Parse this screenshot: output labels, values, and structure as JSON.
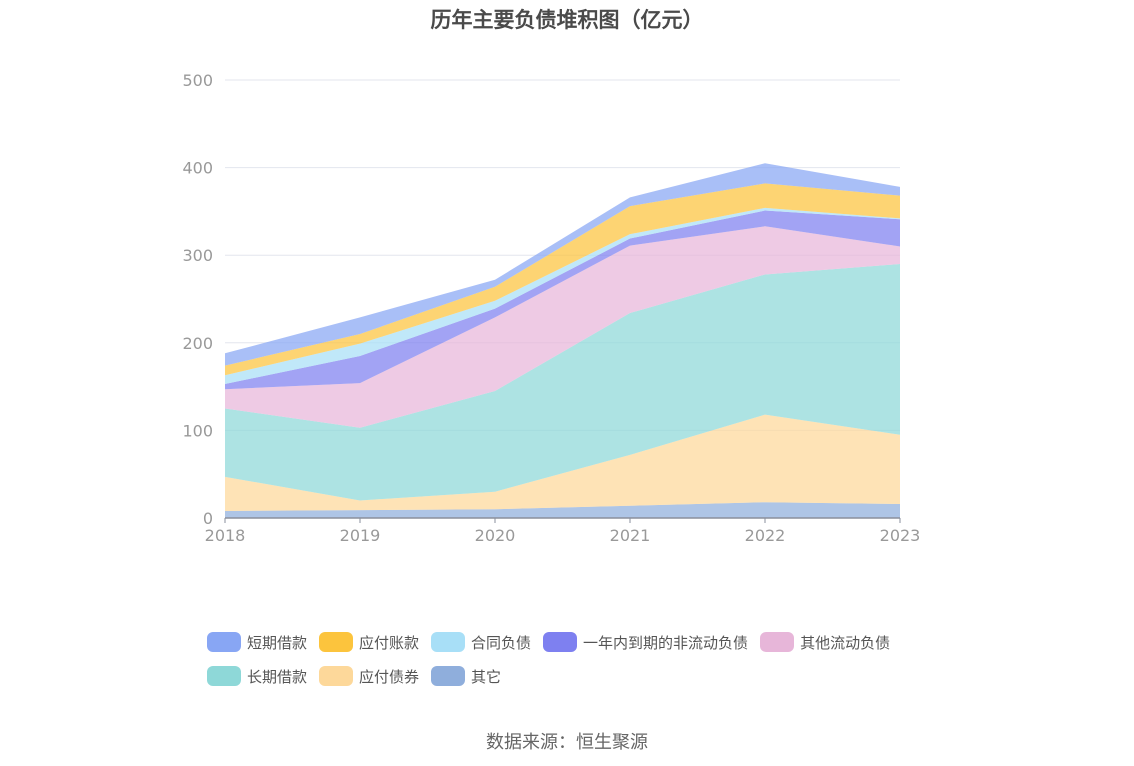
{
  "chart_data": {
    "type": "area",
    "stacked": true,
    "title": "历年主要负债堆积图（亿元）",
    "categories": [
      "2018",
      "2019",
      "2020",
      "2021",
      "2022",
      "2023"
    ],
    "ylim": [
      0,
      500
    ],
    "yticks": [
      0,
      100,
      200,
      300,
      400,
      500
    ],
    "grid": true,
    "legend_position": "bottom",
    "series": [
      {
        "name": "其它",
        "color": "#8faedc",
        "values": [
          8,
          9,
          10,
          14,
          18,
          16
        ]
      },
      {
        "name": "应付债券",
        "color": "#fdd89a",
        "values": [
          39,
          11,
          20,
          58,
          100,
          79
        ]
      },
      {
        "name": "长期借款",
        "color": "#8ed8d8",
        "values": [
          78,
          83,
          115,
          162,
          160,
          195
        ]
      },
      {
        "name": "其他流动负债",
        "color": "#e7b6d9",
        "values": [
          22,
          51,
          84,
          77,
          55,
          20
        ]
      },
      {
        "name": "一年内到期的非流动负债",
        "color": "#7e80f0",
        "values": [
          6,
          31,
          10,
          8,
          18,
          31
        ]
      },
      {
        "name": "合同负债",
        "color": "#a8dff7",
        "values": [
          10,
          14,
          9,
          5,
          3,
          1
        ]
      },
      {
        "name": "应付账款",
        "color": "#fcc43d",
        "values": [
          11,
          11,
          16,
          32,
          28,
          26
        ]
      },
      {
        "name": "短期借款",
        "color": "#88a6f4",
        "values": [
          14,
          19,
          8,
          10,
          23,
          10
        ]
      }
    ],
    "legend_order": [
      "短期借款",
      "应付账款",
      "合同负债",
      "一年内到期的非流动负债",
      "其他流动负债",
      "长期借款",
      "应付债券",
      "其它"
    ]
  },
  "source": "数据来源：恒生聚源"
}
